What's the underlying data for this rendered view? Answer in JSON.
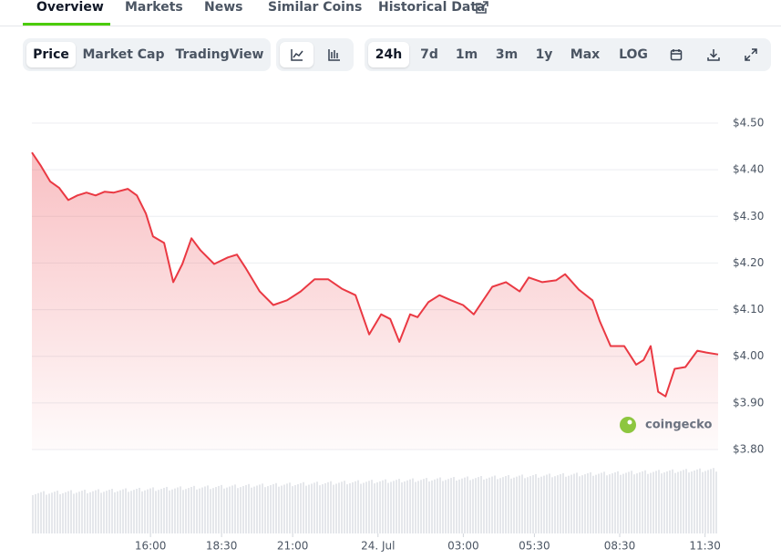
{
  "tabs": [
    "Overview",
    "Markets",
    "News",
    "Similar Coins",
    "Historical Data"
  ],
  "chart_toggles": [
    "Price",
    "Market Cap",
    "TradingView"
  ],
  "ranges": [
    "24h",
    "7d",
    "1m",
    "3m",
    "1y",
    "Max",
    "LOG"
  ],
  "watermark": "coingecko",
  "chart_data": {
    "type": "line",
    "x": [
      11.83,
      12.15,
      12.47,
      12.79,
      13.11,
      13.43,
      13.75,
      14.07,
      14.39,
      14.71,
      15.2,
      15.52,
      15.84,
      16.09,
      16.48,
      16.8,
      17.12,
      17.44,
      17.76,
      18.24,
      18.72,
      19.04,
      19.36,
      19.84,
      20.32,
      20.8,
      21.28,
      21.77,
      22.25,
      22.73,
      23.21,
      23.69,
      24.11,
      24.43,
      24.75,
      25.13,
      25.39,
      25.77,
      26.16,
      26.57,
      26.99,
      27.37,
      27.7,
      28.02,
      28.5,
      28.98,
      29.3,
      29.78,
      30.26,
      30.58,
      31.06,
      31.54,
      31.8,
      32.18,
      32.66,
      33.08,
      33.34,
      33.59,
      33.85,
      34.11,
      34.43,
      34.81,
      35.23,
      35.55,
      35.96
    ],
    "values": [
      4.437,
      4.408,
      4.375,
      4.361,
      4.335,
      4.345,
      4.351,
      4.345,
      4.353,
      4.351,
      4.359,
      4.345,
      4.306,
      4.257,
      4.243,
      4.159,
      4.198,
      4.253,
      4.227,
      4.198,
      4.212,
      4.218,
      4.188,
      4.139,
      4.11,
      4.12,
      4.139,
      4.165,
      4.165,
      4.145,
      4.131,
      4.047,
      4.09,
      4.08,
      4.031,
      4.09,
      4.084,
      4.116,
      4.131,
      4.12,
      4.11,
      4.09,
      4.12,
      4.149,
      4.159,
      4.139,
      4.169,
      4.159,
      4.163,
      4.176,
      4.143,
      4.12,
      4.075,
      4.022,
      4.022,
      3.982,
      3.992,
      4.022,
      3.924,
      3.914,
      3.973,
      3.977,
      4.012,
      4.008,
      4.004
    ],
    "color": "#ea3943",
    "xlim": [
      11.83,
      35.96
    ],
    "xticks": [
      {
        "value": 16,
        "label": "16:00"
      },
      {
        "value": 18.5,
        "label": "18:30"
      },
      {
        "value": 21,
        "label": "21:00"
      },
      {
        "value": 24,
        "label": "24. Jul"
      },
      {
        "value": 27,
        "label": "03:00"
      },
      {
        "value": 29.5,
        "label": "05:30"
      },
      {
        "value": 32.5,
        "label": "08:30"
      },
      {
        "value": 35.5,
        "label": "11:30"
      }
    ],
    "ylim": [
      3.8,
      4.5
    ],
    "yticks": [
      {
        "value": 3.8,
        "label": "$3.80"
      },
      {
        "value": 3.9,
        "label": "$3.90"
      },
      {
        "value": 4.0,
        "label": "$4.00"
      },
      {
        "value": 4.1,
        "label": "$4.10"
      },
      {
        "value": 4.2,
        "label": "$4.20"
      },
      {
        "value": 4.3,
        "label": "$4.30"
      },
      {
        "value": 4.4,
        "label": "$4.40"
      },
      {
        "value": 4.5,
        "label": "$4.50"
      }
    ],
    "grid": true
  }
}
